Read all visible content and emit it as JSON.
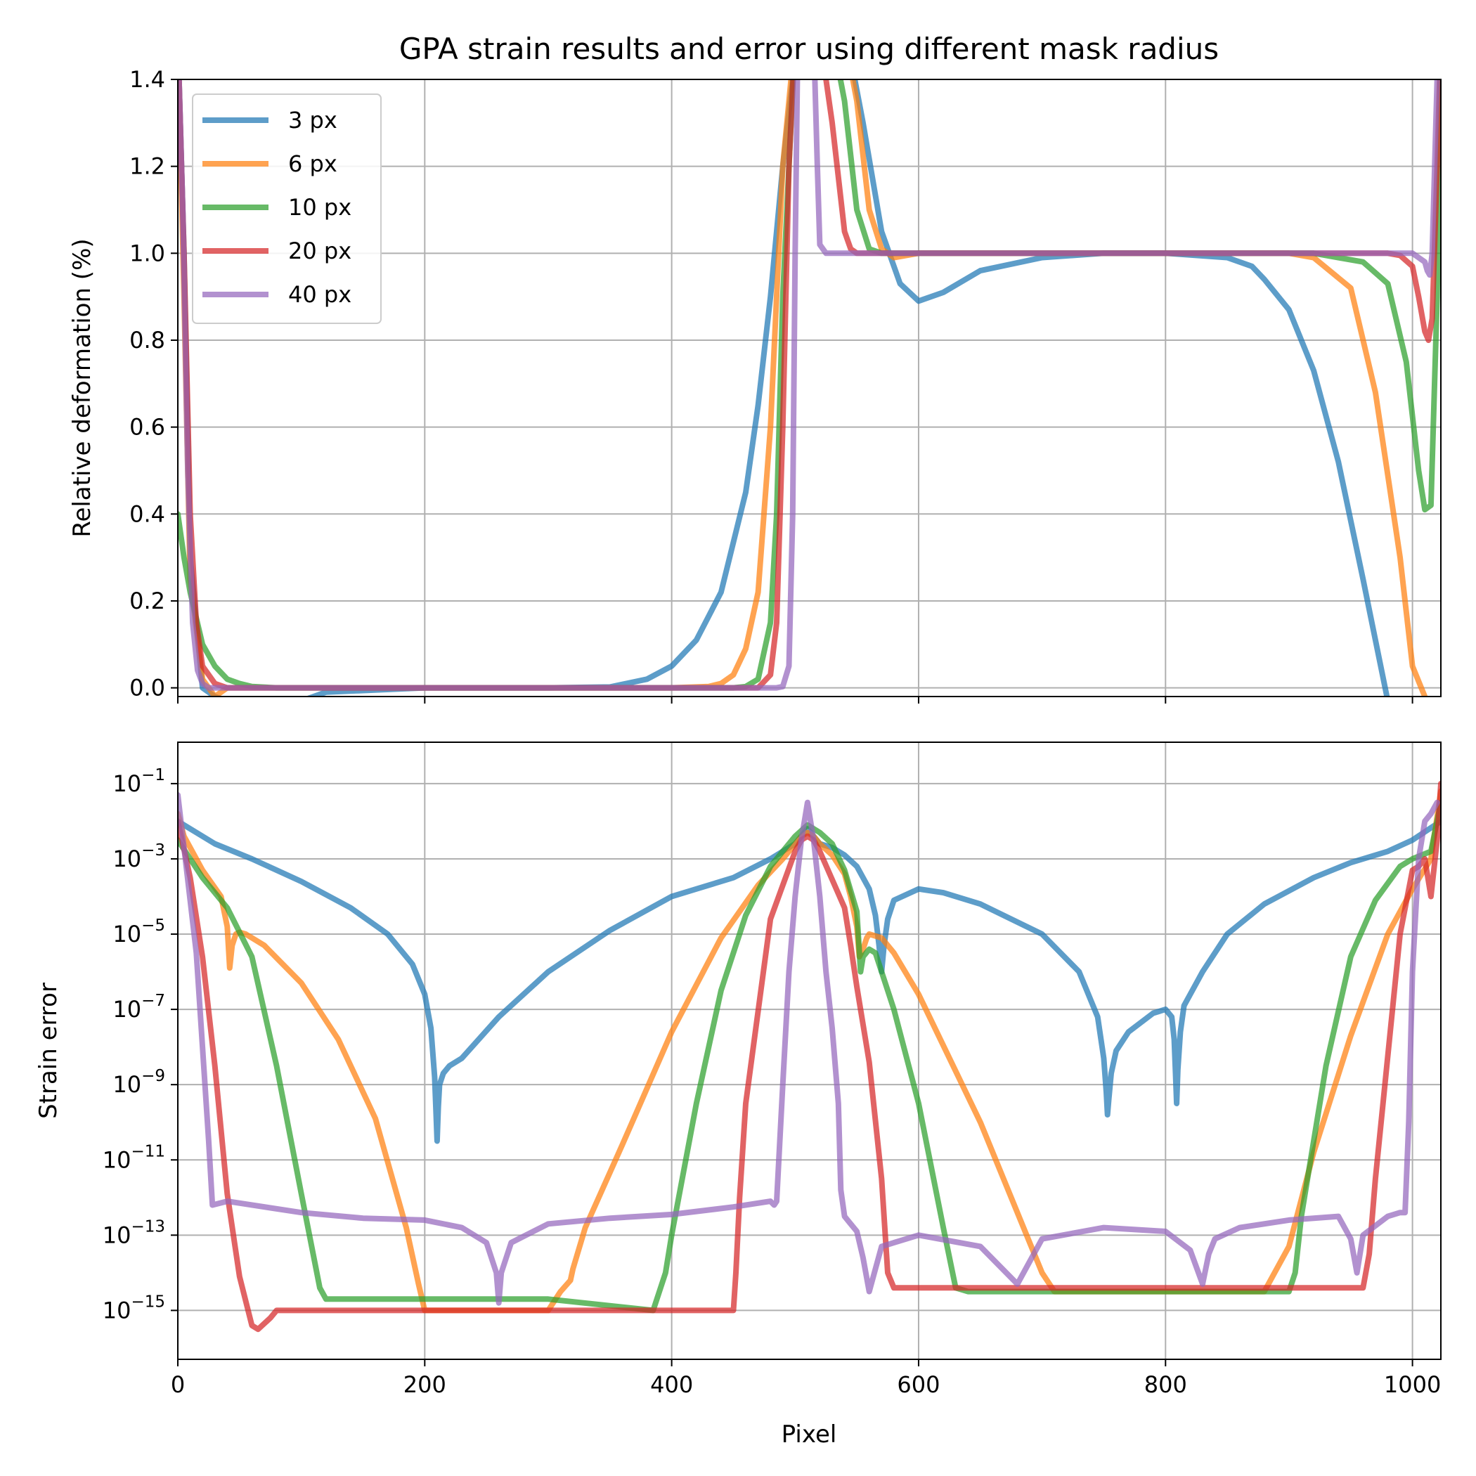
{
  "title": "GPA strain results and error using different mask radius",
  "colors": {
    "3 px": "#1f77b4",
    "6 px": "#ff7f0e",
    "10 px": "#2ca02c",
    "20 px": "#d62728",
    "40 px": "#9467bd"
  },
  "chart_data": [
    {
      "type": "line",
      "ylabel": "Relative deformation (%)",
      "xlabel": "",
      "xlim": [
        0,
        1023
      ],
      "ylim": [
        -0.02,
        1.4
      ],
      "grid": true,
      "legend_position": "top-left",
      "xticks": [
        0,
        200,
        400,
        600,
        800,
        1000
      ],
      "yticks": [
        0.0,
        0.2,
        0.4,
        0.6,
        0.8,
        1.0,
        1.2,
        1.4
      ],
      "ytick_labels": [
        "0.0",
        "0.2",
        "0.4",
        "0.6",
        "0.8",
        "1.0",
        "1.2",
        "1.4"
      ],
      "legend": [
        "3 px",
        "6 px",
        "10 px",
        "20 px",
        "40 px"
      ],
      "series": [
        {
          "name": "3 px",
          "x": [
            0,
            5,
            10,
            20,
            30,
            50,
            80,
            100,
            120,
            200,
            300,
            350,
            380,
            400,
            420,
            440,
            460,
            470,
            480,
            490,
            500,
            510,
            530,
            545,
            555,
            570,
            585,
            600,
            620,
            650,
            700,
            750,
            800,
            850,
            870,
            880,
            900,
            920,
            940,
            960,
            980
          ],
          "y": [
            1.5,
            1.0,
            0.3,
            0.0,
            -0.02,
            -0.04,
            -0.04,
            -0.03,
            -0.01,
            0.0,
            0.0,
            0.002,
            0.02,
            0.05,
            0.11,
            0.22,
            0.45,
            0.65,
            0.9,
            1.2,
            1.45,
            1.5,
            1.5,
            1.45,
            1.3,
            1.05,
            0.93,
            0.89,
            0.91,
            0.96,
            0.99,
            1.0,
            1.0,
            0.99,
            0.97,
            0.94,
            0.87,
            0.73,
            0.52,
            0.25,
            -0.03
          ]
        },
        {
          "name": "6 px",
          "x": [
            0,
            5,
            10,
            20,
            30,
            40,
            60,
            100,
            400,
            430,
            440,
            450,
            460,
            470,
            480,
            490,
            500,
            510,
            540,
            550,
            560,
            570,
            580,
            600,
            700,
            900,
            920,
            950,
            970,
            990,
            1000,
            1010
          ],
          "y": [
            1.5,
            0.9,
            0.25,
            0.02,
            -0.02,
            0.0,
            0.0,
            0.0,
            0.0,
            0.003,
            0.01,
            0.03,
            0.09,
            0.22,
            0.6,
            1.2,
            1.5,
            1.5,
            1.5,
            1.35,
            1.1,
            1.01,
            0.99,
            1.0,
            1.0,
            1.0,
            0.99,
            0.92,
            0.68,
            0.3,
            0.05,
            -0.02
          ]
        },
        {
          "name": "10 px",
          "x": [
            0,
            5,
            10,
            20,
            30,
            40,
            50,
            60,
            80,
            100,
            450,
            460,
            470,
            480,
            485,
            490,
            500,
            510,
            530,
            540,
            550,
            560,
            570,
            580,
            600,
            900,
            920,
            940,
            960,
            980,
            995,
            1005,
            1010,
            1015,
            1020,
            1023
          ],
          "y": [
            0.4,
            0.3,
            0.22,
            0.1,
            0.05,
            0.02,
            0.01,
            0.003,
            0.0,
            0.0,
            0.0,
            0.003,
            0.02,
            0.15,
            0.4,
            0.9,
            1.5,
            1.5,
            1.5,
            1.35,
            1.1,
            1.01,
            1.0,
            1.0,
            1.0,
            1.0,
            1.0,
            0.99,
            0.98,
            0.93,
            0.75,
            0.5,
            0.41,
            0.42,
            0.9,
            1.5
          ]
        },
        {
          "name": "20 px",
          "x": [
            0,
            5,
            10,
            15,
            20,
            30,
            40,
            60,
            100,
            470,
            480,
            485,
            490,
            495,
            500,
            510,
            520,
            530,
            540,
            545,
            550,
            560,
            600,
            980,
            990,
            1000,
            1005,
            1010,
            1013,
            1016,
            1020,
            1023
          ],
          "y": [
            1.5,
            1.0,
            0.4,
            0.15,
            0.05,
            0.01,
            0.0,
            0.0,
            0.0,
            0.0,
            0.03,
            0.15,
            0.6,
            1.2,
            1.5,
            1.5,
            1.5,
            1.3,
            1.05,
            1.01,
            1.0,
            1.0,
            1.0,
            1.0,
            0.995,
            0.97,
            0.9,
            0.82,
            0.8,
            0.85,
            1.2,
            1.5
          ]
        },
        {
          "name": "40 px",
          "x": [
            0,
            4,
            8,
            12,
            16,
            20,
            25,
            30,
            50,
            100,
            480,
            485,
            490,
            495,
            498,
            500,
            502,
            505,
            510,
            512,
            515,
            518,
            520,
            525,
            530,
            600,
            1000,
            1005,
            1010,
            1012,
            1014,
            1016,
            1018,
            1020,
            1023
          ],
          "y": [
            1.5,
            1.1,
            0.5,
            0.15,
            0.04,
            0.01,
            0.0,
            0.0,
            0.0,
            0.0,
            0.0,
            0.0,
            0.003,
            0.05,
            0.4,
            1.0,
            1.45,
            1.5,
            1.5,
            1.5,
            1.5,
            1.2,
            1.02,
            1.0,
            1.0,
            1.0,
            1.0,
            0.99,
            0.98,
            0.96,
            0.95,
            1.0,
            1.2,
            1.4,
            1.5
          ]
        }
      ]
    },
    {
      "type": "line",
      "ylabel": "Strain error",
      "xlabel": "Pixel",
      "xlim": [
        0,
        1023
      ],
      "ylim": [
        -16.3,
        0.1
      ],
      "yscale": "log",
      "grid": true,
      "xticks": [
        0,
        200,
        400,
        600,
        800,
        1000
      ],
      "yticks": [
        -15,
        -13,
        -11,
        -9,
        -7,
        -5,
        -3,
        -1
      ],
      "ytick_base": "10",
      "ytick_exponents": [
        "−15",
        "−13",
        "−11",
        "−9",
        "−7",
        "−5",
        "−3",
        "−1"
      ],
      "series": [
        {
          "name": "3 px",
          "log10_y": true,
          "x": [
            0,
            5,
            30,
            60,
            100,
            140,
            170,
            190,
            200,
            205,
            208,
            209,
            210,
            211,
            212,
            215,
            220,
            230,
            260,
            300,
            350,
            400,
            450,
            480,
            500,
            505,
            510,
            515,
            520,
            530,
            540,
            550,
            560,
            565,
            568,
            570,
            572,
            575,
            580,
            600,
            620,
            650,
            700,
            730,
            745,
            750,
            752,
            753,
            754,
            756,
            760,
            770,
            790,
            800,
            805,
            807,
            808,
            809,
            810,
            812,
            815,
            830,
            850,
            880,
            920,
            950,
            980,
            1000,
            1023
          ],
          "y": [
            -2.0,
            -2.1,
            -2.6,
            -3.0,
            -3.6,
            -4.3,
            -5.0,
            -5.8,
            -6.6,
            -7.5,
            -8.8,
            -9.6,
            -10.5,
            -9.6,
            -9.0,
            -8.7,
            -8.5,
            -8.3,
            -7.2,
            -6.0,
            -4.9,
            -4.0,
            -3.5,
            -3.0,
            -2.6,
            -2.4,
            -2.2,
            -2.4,
            -2.6,
            -2.7,
            -2.9,
            -3.2,
            -3.8,
            -4.5,
            -5.3,
            -6.0,
            -5.3,
            -4.6,
            -4.1,
            -3.8,
            -3.9,
            -4.2,
            -5.0,
            -6.0,
            -7.2,
            -8.3,
            -9.2,
            -9.8,
            -9.4,
            -8.7,
            -8.1,
            -7.6,
            -7.1,
            -7.0,
            -7.2,
            -7.8,
            -8.6,
            -9.5,
            -8.6,
            -7.6,
            -6.9,
            -6.0,
            -5.0,
            -4.2,
            -3.5,
            -3.1,
            -2.8,
            -2.5,
            -2.0
          ]
        },
        {
          "name": "6 px",
          "log10_y": true,
          "x": [
            0,
            5,
            20,
            35,
            40,
            42,
            44,
            47,
            50,
            55,
            70,
            100,
            130,
            160,
            185,
            195,
            200,
            250,
            300,
            310,
            318,
            320,
            330,
            360,
            400,
            440,
            470,
            490,
            505,
            510,
            515,
            520,
            530,
            540,
            545,
            550,
            552,
            555,
            558,
            560,
            570,
            580,
            600,
            650,
            700,
            710,
            800,
            850,
            880,
            900,
            920,
            950,
            980,
            1000,
            1015,
            1023
          ],
          "y": [
            -1.8,
            -2.4,
            -3.3,
            -4.0,
            -4.8,
            -5.9,
            -5.3,
            -5.0,
            -4.95,
            -5.0,
            -5.3,
            -6.3,
            -7.8,
            -9.9,
            -12.8,
            -14.3,
            -15.0,
            -15.0,
            -15.0,
            -14.5,
            -14.2,
            -13.9,
            -12.8,
            -10.6,
            -7.6,
            -5.1,
            -3.7,
            -3.0,
            -2.4,
            -2.3,
            -2.4,
            -2.6,
            -2.9,
            -3.4,
            -4.0,
            -4.8,
            -5.6,
            -5.4,
            -5.1,
            -5.0,
            -5.1,
            -5.5,
            -6.6,
            -10.0,
            -14.0,
            -14.5,
            -14.5,
            -14.5,
            -14.5,
            -13.3,
            -10.8,
            -7.7,
            -5.0,
            -3.8,
            -3.0,
            -1.2
          ]
        },
        {
          "name": "10 px",
          "log10_y": true,
          "x": [
            0,
            20,
            40,
            60,
            80,
            100,
            115,
            120,
            200,
            300,
            385,
            390,
            395,
            400,
            420,
            440,
            460,
            480,
            500,
            510,
            520,
            530,
            540,
            550,
            553,
            555,
            560,
            565,
            570,
            580,
            600,
            620,
            630,
            640,
            700,
            800,
            900,
            905,
            910,
            930,
            950,
            970,
            990,
            1000,
            1015,
            1023
          ],
          "y": [
            -2.5,
            -3.5,
            -4.3,
            -5.6,
            -8.5,
            -11.9,
            -14.4,
            -14.7,
            -14.7,
            -14.7,
            -15.0,
            -14.5,
            -14.0,
            -13.0,
            -9.5,
            -6.5,
            -4.5,
            -3.2,
            -2.4,
            -2.1,
            -2.3,
            -2.6,
            -3.3,
            -4.4,
            -6.0,
            -5.6,
            -5.4,
            -5.5,
            -6.0,
            -7.0,
            -9.5,
            -12.8,
            -14.4,
            -14.5,
            -14.5,
            -14.5,
            -14.5,
            -14.0,
            -12.5,
            -8.5,
            -5.6,
            -4.1,
            -3.2,
            -3.0,
            -2.8,
            -1.5
          ]
        },
        {
          "name": "20 px",
          "log10_y": true,
          "x": [
            0,
            10,
            20,
            30,
            40,
            50,
            60,
            65,
            75,
            80,
            90,
            100,
            200,
            300,
            400,
            450,
            452,
            455,
            460,
            480,
            500,
            505,
            510,
            515,
            520,
            540,
            545,
            550,
            555,
            560,
            570,
            575,
            580,
            600,
            700,
            800,
            900,
            950,
            960,
            965,
            970,
            990,
            1000,
            1005,
            1010,
            1015,
            1020,
            1023
          ],
          "y": [
            -2.0,
            -3.5,
            -5.6,
            -8.5,
            -11.9,
            -14.1,
            -15.4,
            -15.5,
            -15.2,
            -15.0,
            -15.0,
            -15.0,
            -15.0,
            -15.0,
            -15.0,
            -15.0,
            -14.0,
            -12.0,
            -9.5,
            -4.6,
            -2.8,
            -2.5,
            -2.4,
            -2.5,
            -2.8,
            -4.3,
            -5.3,
            -6.4,
            -7.4,
            -8.4,
            -11.5,
            -14.0,
            -14.4,
            -14.4,
            -14.4,
            -14.4,
            -14.4,
            -14.4,
            -14.4,
            -13.5,
            -11.5,
            -5.0,
            -3.3,
            -3.2,
            -3.0,
            -4.0,
            -2.5,
            -1.0
          ]
        },
        {
          "name": "40 px",
          "log10_y": true,
          "x": [
            0,
            5,
            15,
            25,
            28,
            40,
            100,
            150,
            200,
            230,
            250,
            258,
            260,
            262,
            270,
            300,
            350,
            400,
            450,
            480,
            483,
            485,
            490,
            495,
            500,
            505,
            510,
            515,
            520,
            525,
            530,
            535,
            537,
            540,
            545,
            550,
            555,
            560,
            570,
            600,
            650,
            680,
            700,
            750,
            800,
            820,
            830,
            835,
            840,
            860,
            900,
            940,
            950,
            955,
            960,
            980,
            990,
            994,
            997,
            1000,
            1005,
            1010,
            1015,
            1020
          ],
          "y": [
            -1.3,
            -2.7,
            -5.5,
            -10.5,
            -12.2,
            -12.1,
            -12.4,
            -12.55,
            -12.6,
            -12.8,
            -13.2,
            -14.0,
            -14.8,
            -14.0,
            -13.2,
            -12.7,
            -12.55,
            -12.45,
            -12.25,
            -12.1,
            -12.2,
            -12.1,
            -9.0,
            -6.0,
            -4.0,
            -2.5,
            -1.5,
            -2.5,
            -4.0,
            -6.0,
            -7.5,
            -9.5,
            -11.8,
            -12.5,
            -12.7,
            -12.9,
            -13.6,
            -14.5,
            -13.3,
            -13.0,
            -13.3,
            -14.3,
            -13.1,
            -12.8,
            -12.9,
            -13.4,
            -14.3,
            -13.5,
            -13.1,
            -12.8,
            -12.6,
            -12.5,
            -13.1,
            -14.0,
            -13.0,
            -12.5,
            -12.4,
            -12.4,
            -10.0,
            -6.0,
            -3.0,
            -2.0,
            -1.8,
            -1.5
          ]
        }
      ]
    }
  ]
}
